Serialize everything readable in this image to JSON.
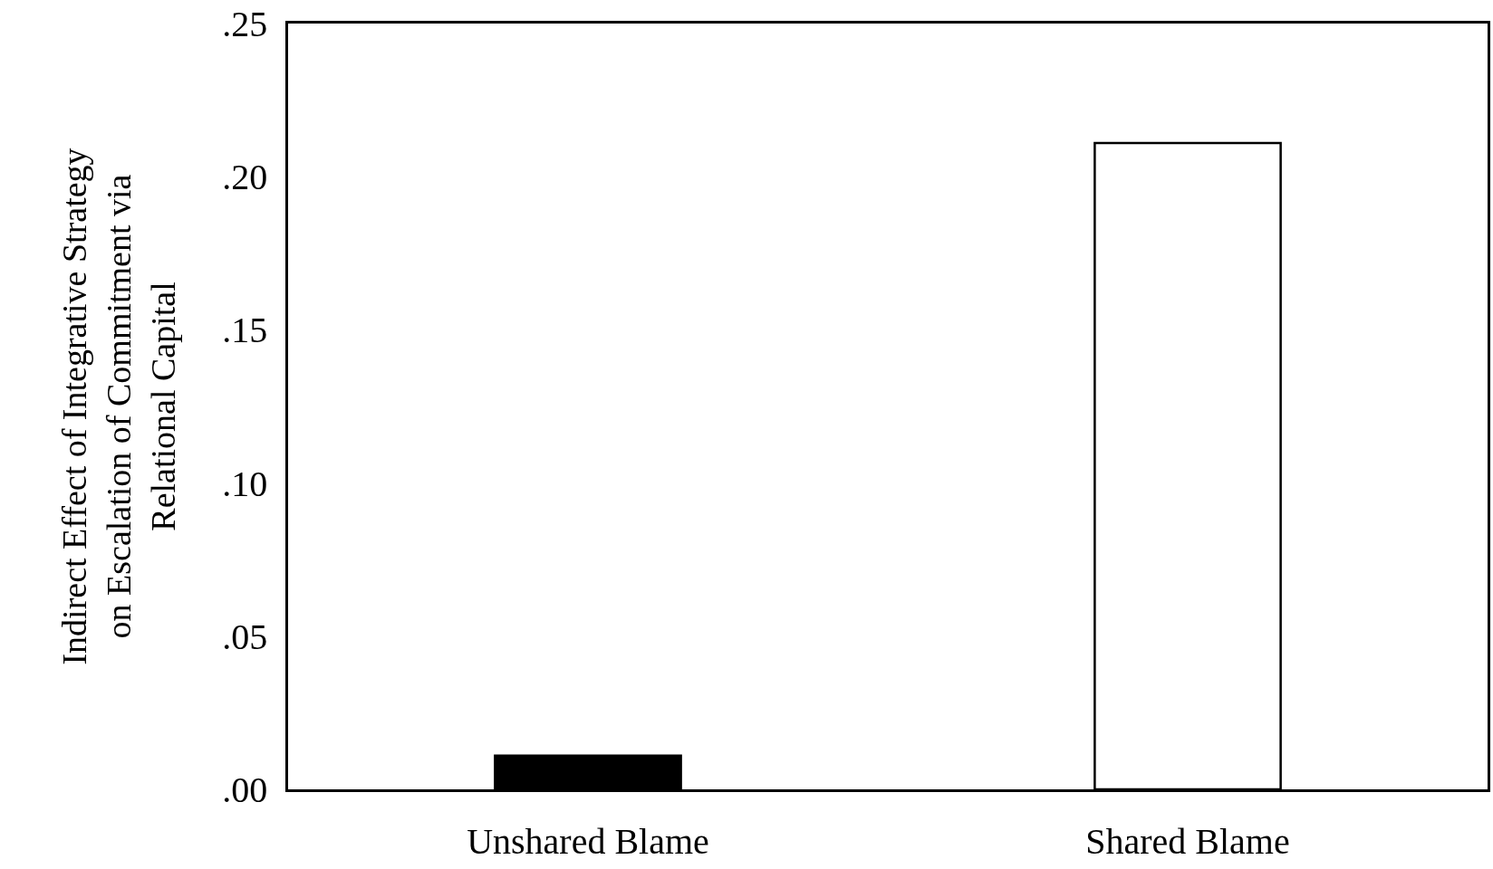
{
  "chart_data": {
    "type": "bar",
    "ylabel": "Indirect Effect of Integrative Strategy\non Escalation of Commitment via\nRelational Capital",
    "categories": [
      "Unshared Blame",
      "Shared Blame"
    ],
    "values": [
      0.011,
      0.211
    ],
    "colors": [
      "#000000",
      "#ffffff"
    ],
    "ylim": [
      0,
      0.25
    ],
    "yticks": [
      {
        "value": 0,
        "label": ".00"
      },
      {
        "value": 0.05,
        "label": ".05"
      },
      {
        "value": 0.1,
        "label": ".10"
      },
      {
        "value": 0.15,
        "label": ".15"
      },
      {
        "value": 0.2,
        "label": ".20"
      },
      {
        "value": 0.25,
        "label": ".25"
      }
    ],
    "legend": false
  }
}
